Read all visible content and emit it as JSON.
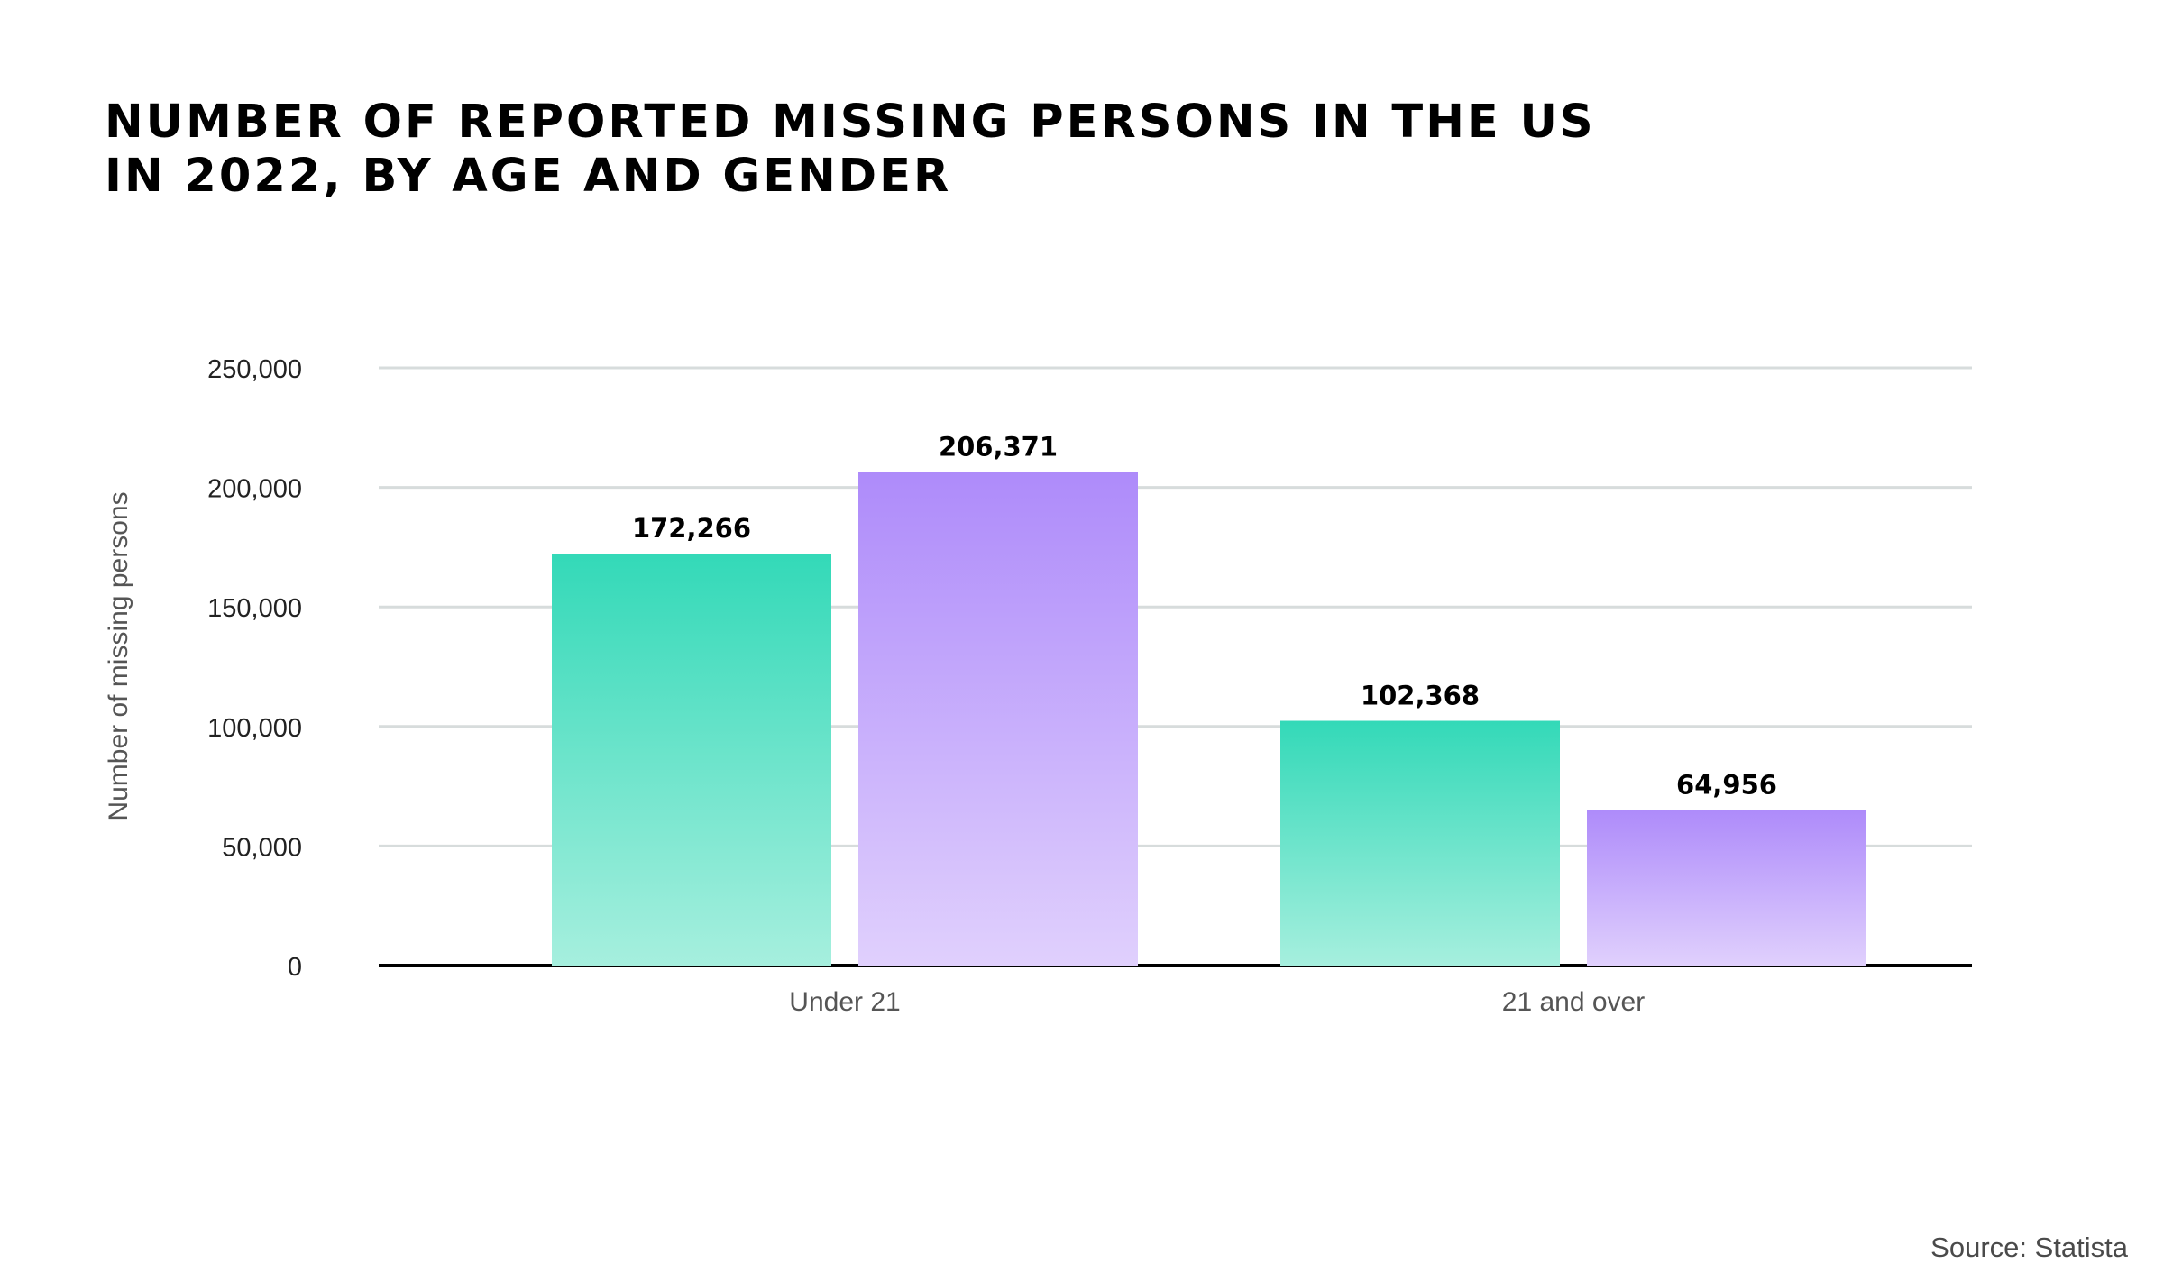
{
  "title_lines": [
    "NUMBER OF REPORTED MISSING PERSONS IN THE US",
    "IN 2022, BY AGE AND GENDER"
  ],
  "source": "Source: Statista",
  "colors": {
    "teal": "#33D9B8",
    "teal_light": "#A6EFDE",
    "purple": "#AE8BFA",
    "purple_light": "#E0D0FD",
    "grid": "#D7DCDC",
    "axis": "#000000",
    "tick_text": "#222222",
    "label_text": "#555555"
  },
  "chart_data": {
    "type": "bar",
    "title": "NUMBER OF REPORTED MISSING PERSONS IN THE US IN 2022, BY AGE AND GENDER",
    "categories": [
      "Under 21",
      "21 and over"
    ],
    "series": [
      {
        "values": [
          172266,
          102368
        ],
        "color": "#33D9B8"
      },
      {
        "values": [
          206371,
          64956
        ],
        "color": "#AE8BFA"
      }
    ],
    "value_labels": [
      [
        "172,266",
        "102,368"
      ],
      [
        "206,371",
        "64,956"
      ]
    ],
    "ylabel": "Number of missing persons",
    "xlabel": "",
    "ylim": [
      0,
      250000
    ],
    "yticks": [
      0,
      50000,
      100000,
      150000,
      200000,
      250000
    ],
    "ytick_labels": [
      "0",
      "50,000",
      "100,000",
      "150,000",
      "200,000",
      "250,000"
    ],
    "grid": true,
    "legend": "none"
  }
}
